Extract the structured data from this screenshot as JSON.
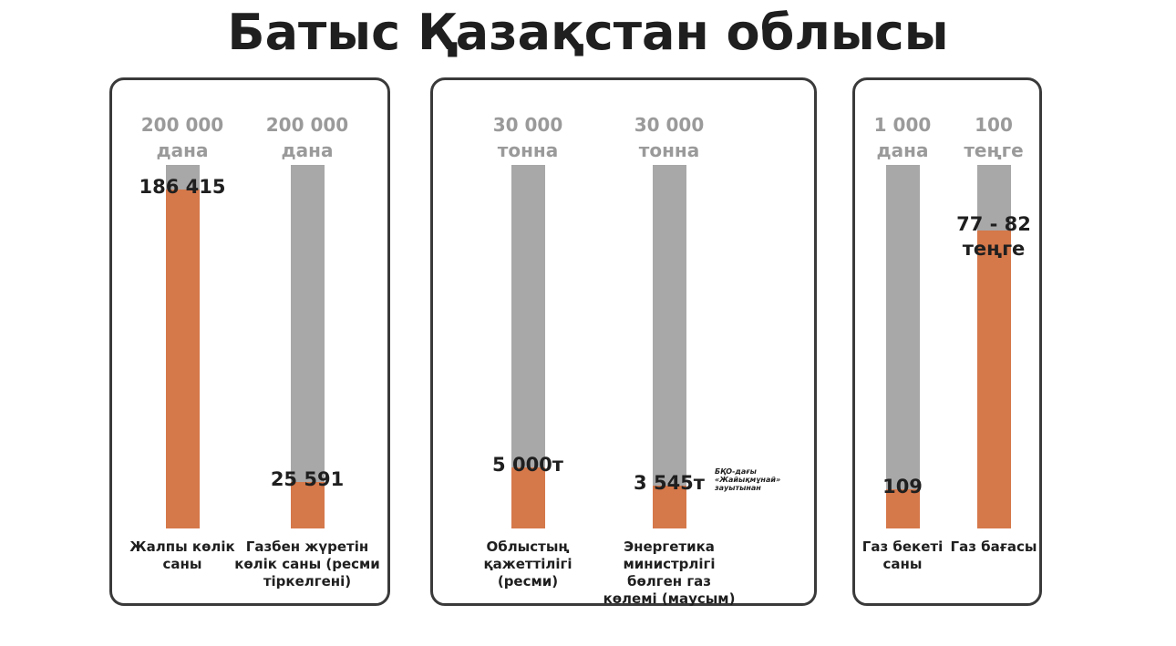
{
  "title": "Батыс Қазақстан облысы",
  "colors": {
    "track": "#a8a8a8",
    "fill": "#d5784a",
    "max_label": "#9a9a9a",
    "border": "#3a3a3a"
  },
  "chart_data": [
    {
      "type": "bar",
      "panel": 1,
      "bars": [
        {
          "max_line1": "200 000",
          "max_line2": "дана",
          "max": 200000,
          "value": 186415,
          "value_label": "186 415",
          "caption": "Жалпы көлік саны"
        },
        {
          "max_line1": "200 000",
          "max_line2": "дана",
          "max": 200000,
          "value": 25591,
          "value_label": "25 591",
          "caption": "Газбен жүретін көлік саны (ресми тіркелгені)"
        }
      ]
    },
    {
      "type": "bar",
      "panel": 2,
      "bars": [
        {
          "max_line1": "30 000",
          "max_line2": "тонна",
          "max": 30000,
          "value": 5000,
          "value_label": "5 000т",
          "caption": "Облыстың қажеттілігі (ресми)"
        },
        {
          "max_line1": "30 000",
          "max_line2": "тонна",
          "max": 30000,
          "value": 3545,
          "value_label": "3 545т",
          "caption": "Энергетика министрлігі бөлген газ көлемі (маусым)",
          "note": "БҚО-дағы «Жайықмұнай» зауытынан"
        }
      ]
    },
    {
      "type": "bar",
      "panel": 3,
      "bars": [
        {
          "max_line1": "1 000",
          "max_line2": "дана",
          "max": 1000,
          "value": 109,
          "value_label": "109",
          "caption": "Газ бекеті саны"
        },
        {
          "max_line1": "100",
          "max_line2": "теңге",
          "max": 100,
          "value": 82,
          "value_label": "77 - 82 теңге",
          "caption": "Газ бағасы"
        }
      ]
    }
  ]
}
